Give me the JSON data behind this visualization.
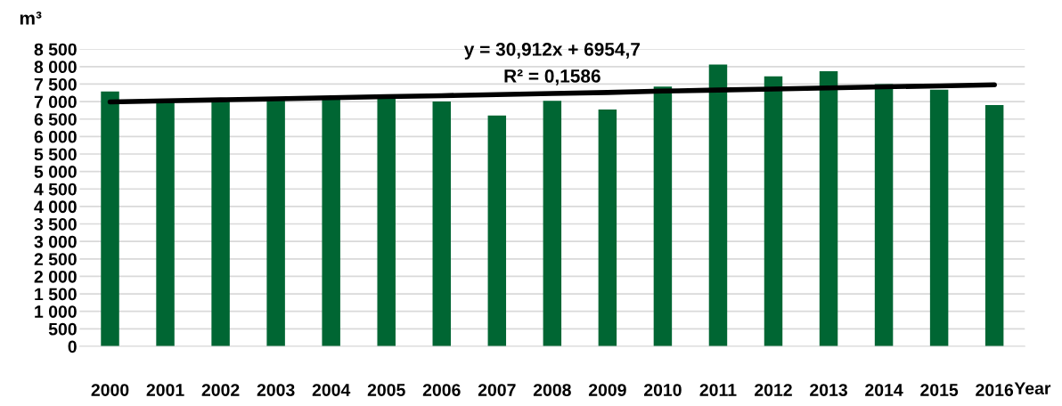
{
  "chart_data": {
    "type": "bar",
    "ylabel": "m³",
    "xlabel": "Year",
    "categories": [
      "2000",
      "2001",
      "2002",
      "2003",
      "2004",
      "2005",
      "2006",
      "2007",
      "2008",
      "2009",
      "2010",
      "2011",
      "2012",
      "2013",
      "2014",
      "2015",
      "2016"
    ],
    "series": [
      {
        "color": "#006633",
        "values": [
          7290,
          6980,
          7030,
          7060,
          7080,
          7120,
          7000,
          6600,
          7020,
          6770,
          7430,
          8060,
          7720,
          7870,
          7500,
          7340,
          6900
        ]
      },
      {
        "type": "line",
        "color": "#000000",
        "values": [
          6990,
          7020,
          7050,
          7080,
          7110,
          7140,
          7170,
          7200,
          7230,
          7260,
          7300,
          7330,
          7360,
          7390,
          7420,
          7450,
          7480
        ]
      }
    ],
    "ylim": [
      0,
      8500
    ],
    "yticks": [
      0,
      500,
      {
        "value": 1000,
        "label": "1 000"
      },
      {
        "value": 1500,
        "label": "1 500"
      },
      {
        "value": 2000,
        "label": "2 000"
      },
      {
        "value": 2500,
        "label": "2 500"
      },
      {
        "value": 3000,
        "label": "3 000"
      },
      {
        "value": 3500,
        "label": "3 500"
      },
      {
        "value": 4000,
        "label": "4 000"
      },
      {
        "value": 4500,
        "label": "4 500"
      },
      {
        "value": 5000,
        "label": "5 000"
      },
      {
        "value": 5500,
        "label": "5 500"
      },
      {
        "value": 6000,
        "label": "6 000"
      },
      {
        "value": 6500,
        "label": "6 500"
      },
      {
        "value": 7000,
        "label": "7 000"
      },
      {
        "value": 7500,
        "label": "7 500"
      },
      {
        "value": 8000,
        "label": "8 000"
      },
      {
        "value": 8500,
        "label": "8 500"
      }
    ],
    "grid": "y",
    "annotations": [
      "y = 30,912x + 6954,7",
      "R² = 0,1586"
    ]
  }
}
